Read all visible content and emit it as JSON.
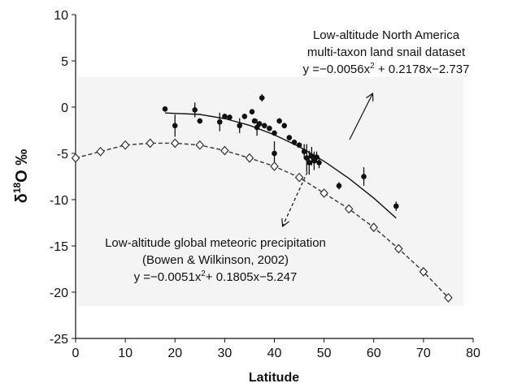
{
  "chart_data": {
    "type": "scatter",
    "x_label": "Latitude",
    "y_label": {
      "prefix": "δ",
      "sup": "18",
      "suffix": "O ‰"
    },
    "xlim": [
      0,
      80
    ],
    "xticks": [
      0,
      10,
      20,
      30,
      40,
      50,
      60,
      70,
      80
    ],
    "ylim": [
      -25,
      10
    ],
    "yticks": [
      -25,
      -20,
      -15,
      -10,
      -5,
      0,
      5,
      10
    ],
    "series": [
      {
        "color": "#111111",
        "marker": "circle",
        "line": "none",
        "x": [
          18,
          20,
          24,
          25,
          29,
          30,
          31,
          33,
          34,
          35.5,
          36,
          36.5,
          37,
          37.5,
          38,
          39,
          40,
          40,
          41,
          42,
          43,
          44,
          45,
          46,
          46.5,
          47,
          47.5,
          48,
          48.5,
          49,
          53,
          58,
          64.5
        ],
        "values": [
          -0.2,
          -2,
          -0.3,
          -1.5,
          -1.6,
          -1,
          -1.1,
          -2,
          -1,
          -0.5,
          -1.5,
          -2.2,
          -1.8,
          1,
          -2,
          -2.3,
          -5,
          -2.8,
          -1.5,
          -2,
          -3.3,
          -3.8,
          -4.1,
          -4.8,
          -5.5,
          -6,
          -5.3,
          -5.8,
          -5.4,
          -6,
          -8.5,
          -7.5,
          -10.7
        ],
        "errors": [
          0.3,
          1.2,
          0.8,
          0.3,
          1,
          0.3,
          0.3,
          0.8,
          0.3,
          0.3,
          0.3,
          0.9,
          0.3,
          0.4,
          0.3,
          0.3,
          1.3,
          0.3,
          0.3,
          0.3,
          0.3,
          0.3,
          0.3,
          0.8,
          1.5,
          1.3,
          1.0,
          1.0,
          0.6,
          0.6,
          0.4,
          1.0,
          0.5
        ]
      },
      {
        "color": "#111111",
        "marker": "none",
        "line": "solid",
        "x": [
          18,
          25,
          30,
          35,
          40,
          45,
          50,
          55,
          60,
          64.5
        ],
        "values": [
          -0.63,
          -0.79,
          -1.24,
          -1.97,
          -2.99,
          -4.28,
          -5.85,
          -7.7,
          -9.83,
          -11.99
        ]
      },
      {
        "color": "#333333",
        "marker": "diamond",
        "line": "dashed",
        "x": [
          0,
          5,
          10,
          15,
          20,
          25,
          30,
          35,
          40,
          45,
          50,
          55,
          60,
          65,
          70,
          75
        ],
        "values": [
          -5.5,
          -4.8,
          -4.1,
          -3.9,
          -3.9,
          -4.1,
          -4.7,
          -5.5,
          -6.4,
          -7.6,
          -9.3,
          -11,
          -13,
          -15.3,
          -17.8,
          -20.6
        ]
      }
    ],
    "annotations": [
      {
        "lines": [
          [
            {
              "text": "Low-altitude North America"
            }
          ],
          [
            {
              "text": "multi-taxon land snail dataset"
            }
          ],
          [
            {
              "text": "y =−0.0056x"
            },
            {
              "sup": "2"
            },
            {
              "text": " + 0.2178x−2.737"
            }
          ]
        ]
      },
      {
        "lines": [
          [
            {
              "text": "Low-altitude global meteoric precipitation"
            }
          ],
          [
            {
              "text": "(Bowen & Wilkinson, 2002)"
            }
          ],
          [
            {
              "text": "y =−0.0051x"
            },
            {
              "sup": "2"
            },
            {
              "text": "+ 0.1805x−5.247"
            }
          ]
        ]
      }
    ]
  }
}
